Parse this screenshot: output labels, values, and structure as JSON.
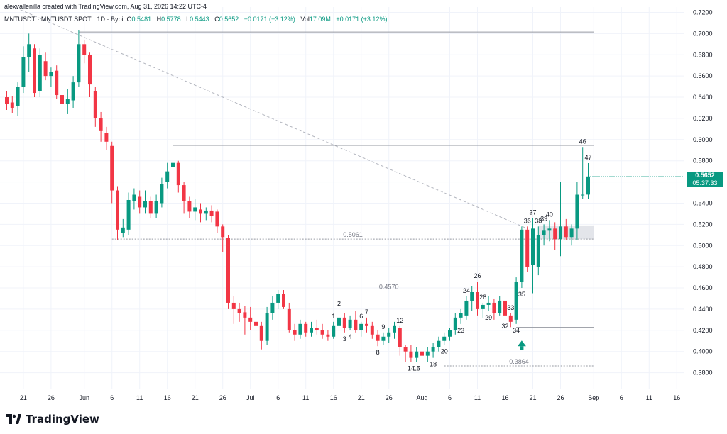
{
  "header": {
    "creator": "alexvallenilla created with TradingView.com,",
    "timestamp": "Aug 31, 2026 14:22 UTC-4"
  },
  "symbol": {
    "name": "MNTUSDT · MNTUSDT SPOT · 1D · Bybit",
    "open_label": "O",
    "open": "0.5481",
    "high_label": "H",
    "high": "0.5778",
    "low_label": "L",
    "low": "0.5443",
    "close_label": "C",
    "close": "0.5652",
    "change": "+0.0171 (+3.12%)",
    "vol_label": "Vol",
    "vol": "17.09M",
    "change2": "+0.0171 (+3.12%)"
  },
  "price_badge": {
    "price": "0.5652",
    "countdown": "05:37:33"
  },
  "brand": {
    "name": "TradingView",
    "logo": "tradingview-logo-icon"
  },
  "colors": {
    "up": "#089981",
    "down": "#f23645",
    "grid": "#f0f3fa",
    "line": "#787b86",
    "badge": "#089981"
  },
  "chart_data": {
    "type": "candlestick",
    "y_axis": {
      "range": [
        0.365,
        0.725
      ],
      "ticks": [
        "0.7200",
        "0.7000",
        "0.6800",
        "0.6600",
        "0.6400",
        "0.6200",
        "0.6000",
        "0.5800",
        "0.5600",
        "0.5400",
        "0.5200",
        "0.5000",
        "0.4800",
        "0.4600",
        "0.4400",
        "0.4200",
        "0.4000",
        "0.3800"
      ]
    },
    "x_axis": {
      "ticks": [
        {
          "label": "21",
          "i": 3
        },
        {
          "label": "26",
          "i": 8
        },
        {
          "label": "Jun",
          "i": 14
        },
        {
          "label": "6",
          "i": 19
        },
        {
          "label": "11",
          "i": 24
        },
        {
          "label": "16",
          "i": 29
        },
        {
          "label": "21",
          "i": 34
        },
        {
          "label": "26",
          "i": 39
        },
        {
          "label": "Jul",
          "i": 44
        },
        {
          "label": "6",
          "i": 49
        },
        {
          "label": "11",
          "i": 54
        },
        {
          "label": "16",
          "i": 59
        },
        {
          "label": "21",
          "i": 64
        },
        {
          "label": "26",
          "i": 69
        },
        {
          "label": "Aug",
          "i": 75
        },
        {
          "label": "6",
          "i": 80
        },
        {
          "label": "11",
          "i": 85
        },
        {
          "label": "16",
          "i": 90
        },
        {
          "label": "21",
          "i": 95
        },
        {
          "label": "26",
          "i": 100
        },
        {
          "label": "Sep",
          "i": 106
        },
        {
          "label": "6",
          "i": 111
        },
        {
          "label": "11",
          "i": 116
        },
        {
          "label": "16",
          "i": 121
        }
      ]
    },
    "candles": [
      [
        0.64,
        0.646,
        0.628,
        0.634
      ],
      [
        0.635,
        0.641,
        0.625,
        0.63
      ],
      [
        0.632,
        0.654,
        0.622,
        0.65
      ],
      [
        0.65,
        0.688,
        0.644,
        0.678
      ],
      [
        0.678,
        0.7,
        0.664,
        0.69
      ],
      [
        0.686,
        0.69,
        0.64,
        0.644
      ],
      [
        0.646,
        0.686,
        0.64,
        0.68
      ],
      [
        0.674,
        0.682,
        0.656,
        0.66
      ],
      [
        0.66,
        0.668,
        0.65,
        0.664
      ],
      [
        0.665,
        0.67,
        0.638,
        0.642
      ],
      [
        0.642,
        0.65,
        0.63,
        0.634
      ],
      [
        0.634,
        0.648,
        0.624,
        0.638
      ],
      [
        0.637,
        0.66,
        0.63,
        0.654
      ],
      [
        0.654,
        0.703,
        0.65,
        0.69
      ],
      [
        0.69,
        0.694,
        0.672,
        0.68
      ],
      [
        0.68,
        0.682,
        0.64,
        0.652
      ],
      [
        0.646,
        0.65,
        0.612,
        0.62
      ],
      [
        0.62,
        0.626,
        0.598,
        0.608
      ],
      [
        0.606,
        0.612,
        0.59,
        0.598
      ],
      [
        0.594,
        0.598,
        0.54,
        0.552
      ],
      [
        0.552,
        0.556,
        0.505,
        0.515
      ],
      [
        0.512,
        0.525,
        0.508,
        0.517
      ],
      [
        0.515,
        0.55,
        0.51,
        0.543
      ],
      [
        0.542,
        0.554,
        0.534,
        0.548
      ],
      [
        0.546,
        0.552,
        0.53,
        0.536
      ],
      [
        0.536,
        0.552,
        0.53,
        0.542
      ],
      [
        0.542,
        0.546,
        0.526,
        0.53
      ],
      [
        0.53,
        0.548,
        0.526,
        0.542
      ],
      [
        0.54,
        0.564,
        0.536,
        0.558
      ],
      [
        0.56,
        0.578,
        0.554,
        0.57
      ],
      [
        0.574,
        0.594,
        0.562,
        0.578
      ],
      [
        0.578,
        0.58,
        0.55,
        0.557
      ],
      [
        0.557,
        0.56,
        0.53,
        0.542
      ],
      [
        0.542,
        0.546,
        0.526,
        0.532
      ],
      [
        0.532,
        0.544,
        0.524,
        0.536
      ],
      [
        0.534,
        0.54,
        0.522,
        0.53
      ],
      [
        0.53,
        0.536,
        0.524,
        0.533
      ],
      [
        0.533,
        0.538,
        0.522,
        0.528
      ],
      [
        0.532,
        0.534,
        0.512,
        0.518
      ],
      [
        0.518,
        0.52,
        0.494,
        0.508
      ],
      [
        0.507,
        0.51,
        0.44,
        0.446
      ],
      [
        0.446,
        0.452,
        0.426,
        0.44
      ],
      [
        0.44,
        0.446,
        0.428,
        0.436
      ],
      [
        0.437,
        0.443,
        0.416,
        0.432
      ],
      [
        0.432,
        0.442,
        0.42,
        0.428
      ],
      [
        0.428,
        0.434,
        0.412,
        0.424
      ],
      [
        0.424,
        0.428,
        0.402,
        0.41
      ],
      [
        0.41,
        0.442,
        0.406,
        0.436
      ],
      [
        0.436,
        0.452,
        0.43,
        0.446
      ],
      [
        0.446,
        0.458,
        0.44,
        0.454
      ],
      [
        0.454,
        0.458,
        0.44,
        0.442
      ],
      [
        0.44,
        0.446,
        0.418,
        0.42
      ],
      [
        0.42,
        0.426,
        0.41,
        0.416
      ],
      [
        0.416,
        0.43,
        0.412,
        0.426
      ],
      [
        0.426,
        0.428,
        0.414,
        0.418
      ],
      [
        0.418,
        0.428,
        0.414,
        0.422
      ],
      [
        0.422,
        0.43,
        0.416,
        0.42
      ],
      [
        0.42,
        0.426,
        0.412,
        0.416
      ],
      [
        0.416,
        0.42,
        0.41,
        0.414
      ],
      [
        0.414,
        0.428,
        0.412,
        0.424
      ],
      [
        0.424,
        0.44,
        0.42,
        0.432
      ],
      [
        0.432,
        0.436,
        0.418,
        0.422
      ],
      [
        0.422,
        0.434,
        0.42,
        0.43
      ],
      [
        0.43,
        0.438,
        0.418,
        0.42
      ],
      [
        0.42,
        0.428,
        0.414,
        0.426
      ],
      [
        0.426,
        0.432,
        0.418,
        0.424
      ],
      [
        0.424,
        0.428,
        0.412,
        0.416
      ],
      [
        0.416,
        0.42,
        0.405,
        0.41
      ],
      [
        0.41,
        0.418,
        0.406,
        0.414
      ],
      [
        0.414,
        0.422,
        0.408,
        0.418
      ],
      [
        0.418,
        0.428,
        0.412,
        0.424
      ],
      [
        0.422,
        0.424,
        0.396,
        0.404
      ],
      [
        0.404,
        0.406,
        0.39,
        0.4
      ],
      [
        0.4,
        0.406,
        0.39,
        0.394
      ],
      [
        0.394,
        0.404,
        0.39,
        0.4
      ],
      [
        0.4,
        0.402,
        0.388,
        0.396
      ],
      [
        0.396,
        0.404,
        0.39,
        0.4
      ],
      [
        0.4,
        0.408,
        0.394,
        0.404
      ],
      [
        0.404,
        0.414,
        0.4,
        0.41
      ],
      [
        0.41,
        0.418,
        0.406,
        0.414
      ],
      [
        0.414,
        0.422,
        0.41,
        0.42
      ],
      [
        0.42,
        0.436,
        0.416,
        0.432
      ],
      [
        0.432,
        0.44,
        0.426,
        0.436
      ],
      [
        0.434,
        0.452,
        0.43,
        0.448
      ],
      [
        0.448,
        0.462,
        0.438,
        0.456
      ],
      [
        0.456,
        0.466,
        0.434,
        0.44
      ],
      [
        0.44,
        0.446,
        0.432,
        0.444
      ],
      [
        0.444,
        0.452,
        0.438,
        0.446
      ],
      [
        0.446,
        0.45,
        0.43,
        0.436
      ],
      [
        0.436,
        0.452,
        0.434,
        0.448
      ],
      [
        0.448,
        0.452,
        0.43,
        0.434
      ],
      [
        0.434,
        0.436,
        0.423,
        0.428
      ],
      [
        0.43,
        0.47,
        0.426,
        0.466
      ],
      [
        0.466,
        0.518,
        0.46,
        0.515
      ],
      [
        0.515,
        0.518,
        0.475,
        0.48
      ],
      [
        0.482,
        0.526,
        0.455,
        0.516
      ],
      [
        0.48,
        0.518,
        0.472,
        0.51
      ],
      [
        0.51,
        0.52,
        0.5,
        0.514
      ],
      [
        0.514,
        0.524,
        0.504,
        0.516
      ],
      [
        0.516,
        0.522,
        0.496,
        0.506
      ],
      [
        0.506,
        0.56,
        0.49,
        0.518
      ],
      [
        0.518,
        0.525,
        0.505,
        0.508
      ],
      [
        0.508,
        0.52,
        0.5,
        0.516
      ],
      [
        0.516,
        0.56,
        0.505,
        0.548
      ],
      [
        0.548,
        0.593,
        0.544,
        0.548
      ],
      [
        0.5481,
        0.5778,
        0.5443,
        0.5652
      ]
    ],
    "levels": [
      {
        "label": "0.5061",
        "price": 0.5061
      },
      {
        "label": "0.4570",
        "price": 0.457
      },
      {
        "label": "0.3864",
        "price": 0.3864
      }
    ],
    "wave_labels": [
      {
        "text": "1",
        "i": 59,
        "pos": "above"
      },
      {
        "text": "2",
        "i": 60,
        "pos": "above"
      },
      {
        "text": "3",
        "i": 61,
        "pos": "below"
      },
      {
        "text": "4",
        "i": 62,
        "pos": "below"
      },
      {
        "text": "6",
        "i": 64,
        "pos": "above"
      },
      {
        "text": "7",
        "i": 65,
        "pos": "above"
      },
      {
        "text": "8",
        "i": 67,
        "pos": "below"
      },
      {
        "text": "9",
        "i": 68,
        "pos": "above"
      },
      {
        "text": "12",
        "i": 71,
        "pos": "above"
      },
      {
        "text": "14",
        "i": 73,
        "pos": "below"
      },
      {
        "text": "15",
        "i": 74,
        "pos": "below"
      },
      {
        "text": "18",
        "i": 77,
        "pos": "below"
      },
      {
        "text": "20",
        "i": 79,
        "pos": "below"
      },
      {
        "text": "23",
        "i": 82,
        "pos": "below"
      },
      {
        "text": "24",
        "i": 83,
        "pos": "above"
      },
      {
        "text": "26",
        "i": 85,
        "pos": "above"
      },
      {
        "text": "28",
        "i": 86,
        "pos": "above"
      },
      {
        "text": "29",
        "i": 87,
        "pos": "below"
      },
      {
        "text": "32",
        "i": 90,
        "pos": "below"
      },
      {
        "text": "33",
        "i": 91,
        "pos": "above"
      },
      {
        "text": "34",
        "i": 92,
        "pos": "below"
      },
      {
        "text": "35",
        "i": 93,
        "pos": "below"
      },
      {
        "text": "36",
        "i": 94,
        "pos": "above"
      },
      {
        "text": "37",
        "i": 95,
        "pos": "above"
      },
      {
        "text": "38",
        "i": 96,
        "pos": "above"
      },
      {
        "text": "39",
        "i": 97,
        "pos": "above"
      },
      {
        "text": "40",
        "i": 98,
        "pos": "above"
      },
      {
        "text": "46",
        "i": 104,
        "pos": "above"
      },
      {
        "text": "47",
        "i": 105,
        "pos": "above"
      }
    ],
    "grid": true
  }
}
